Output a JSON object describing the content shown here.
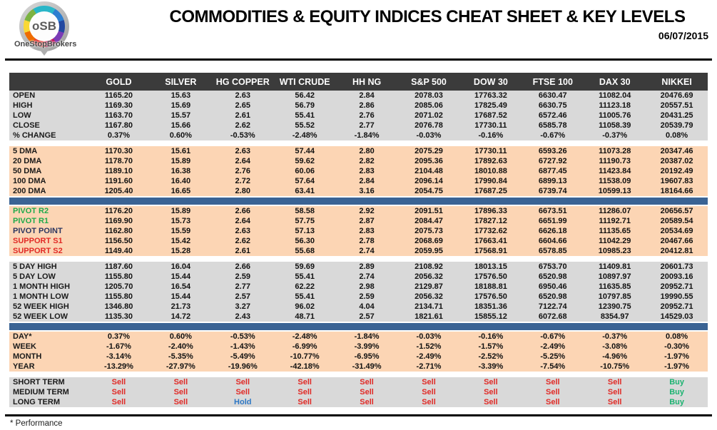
{
  "header": {
    "title": "COMMODITIES & EQUITY INDICES CHEAT SHEET & KEY LEVELS",
    "date": "06/07/2015",
    "logo_text": "oSB",
    "logo_subtext": "OneStopBrokers"
  },
  "footnote": "* Performance",
  "colors": {
    "header_bg": "#3b3b3b",
    "gray_section_bg": "#d9d9d9",
    "peach_section_bg": "#fcd5b4",
    "separator_blue": "#3a6394",
    "sell_red": "#e12a26",
    "buy_green": "#1cb371",
    "hold_blue": "#2d77c4",
    "pivot_green": "#1faa4c",
    "pivot_navy": "#2a3560"
  },
  "table": {
    "columns": [
      "GOLD",
      "SILVER",
      "HG COPPER",
      "WTI CRUDE",
      "HH NG",
      "S&P 500",
      "DOW 30",
      "FTSE 100",
      "DAX 30",
      "NIKKEI"
    ],
    "sections": [
      {
        "type": "rows",
        "bg": "gray",
        "rows": [
          {
            "label": "OPEN",
            "values": [
              "1165.20",
              "15.63",
              "2.63",
              "56.42",
              "2.84",
              "2078.03",
              "17763.32",
              "6630.47",
              "11082.04",
              "20476.69"
            ]
          },
          {
            "label": "HIGH",
            "values": [
              "1169.30",
              "15.69",
              "2.65",
              "56.79",
              "2.86",
              "2085.06",
              "17825.49",
              "6630.75",
              "11123.18",
              "20557.51"
            ]
          },
          {
            "label": "LOW",
            "values": [
              "1163.70",
              "15.57",
              "2.61",
              "55.41",
              "2.76",
              "2071.02",
              "17687.52",
              "6572.46",
              "11005.76",
              "20431.25"
            ]
          },
          {
            "label": "CLOSE",
            "values": [
              "1167.80",
              "15.66",
              "2.62",
              "55.52",
              "2.77",
              "2076.78",
              "17730.11",
              "6585.78",
              "11058.39",
              "20539.79"
            ]
          },
          {
            "label": "% CHANGE",
            "values": [
              "0.37%",
              "0.60%",
              "-0.53%",
              "-2.48%",
              "-1.84%",
              "-0.03%",
              "-0.16%",
              "-0.67%",
              "-0.37%",
              "0.08%"
            ]
          }
        ]
      },
      {
        "type": "rows",
        "bg": "peach",
        "rows": [
          {
            "label": "5 DMA",
            "values": [
              "1170.30",
              "15.61",
              "2.63",
              "57.44",
              "2.80",
              "2075.29",
              "17730.11",
              "6593.26",
              "11073.28",
              "20347.46"
            ]
          },
          {
            "label": "20 DMA",
            "values": [
              "1178.70",
              "15.89",
              "2.64",
              "59.62",
              "2.82",
              "2095.36",
              "17892.63",
              "6727.92",
              "11190.73",
              "20387.02"
            ]
          },
          {
            "label": "50 DMA",
            "values": [
              "1189.10",
              "16.38",
              "2.76",
              "60.06",
              "2.83",
              "2104.48",
              "18010.88",
              "6877.45",
              "11423.84",
              "20192.49"
            ]
          },
          {
            "label": "100 DMA",
            "values": [
              "1191.60",
              "16.40",
              "2.72",
              "57.64",
              "2.84",
              "2096.14",
              "17990.84",
              "6899.13",
              "11538.09",
              "19607.83"
            ]
          },
          {
            "label": "200 DMA",
            "values": [
              "1205.40",
              "16.65",
              "2.80",
              "63.41",
              "3.16",
              "2054.75",
              "17687.25",
              "6739.74",
              "10599.13",
              "18164.66"
            ]
          }
        ]
      },
      {
        "type": "separator"
      },
      {
        "type": "rows",
        "bg": "peach",
        "rows": [
          {
            "label": "PIVOT R2",
            "lc": "green",
            "values": [
              "1176.20",
              "15.89",
              "2.66",
              "58.58",
              "2.92",
              "2091.51",
              "17896.33",
              "6673.51",
              "11286.07",
              "20656.57"
            ]
          },
          {
            "label": "PIVOT R1",
            "lc": "green",
            "values": [
              "1169.90",
              "15.73",
              "2.64",
              "57.75",
              "2.87",
              "2084.47",
              "17827.12",
              "6651.99",
              "11192.71",
              "20589.54"
            ]
          },
          {
            "label": "PIVOT POINT",
            "lc": "navy",
            "values": [
              "1162.80",
              "15.59",
              "2.63",
              "57.13",
              "2.83",
              "2075.73",
              "17732.62",
              "6626.18",
              "11135.65",
              "20534.69"
            ]
          },
          {
            "label": "SUPPORT S1",
            "lc": "red",
            "values": [
              "1156.50",
              "15.42",
              "2.62",
              "56.30",
              "2.78",
              "2068.69",
              "17663.41",
              "6604.66",
              "11042.29",
              "20467.66"
            ]
          },
          {
            "label": "SUPPORT S2",
            "lc": "red",
            "values": [
              "1149.40",
              "15.28",
              "2.61",
              "55.68",
              "2.74",
              "2059.95",
              "17568.91",
              "6578.85",
              "10985.23",
              "20412.81"
            ]
          }
        ]
      },
      {
        "type": "rows",
        "bg": "gray",
        "rows": [
          {
            "label": "5 DAY HIGH",
            "values": [
              "1187.60",
              "16.04",
              "2.66",
              "59.69",
              "2.89",
              "2108.92",
              "18013.15",
              "6753.70",
              "11409.81",
              "20601.73"
            ]
          },
          {
            "label": "5 DAY LOW",
            "values": [
              "1155.80",
              "15.44",
              "2.59",
              "55.41",
              "2.74",
              "2056.32",
              "17576.50",
              "6520.98",
              "10897.97",
              "20093.16"
            ]
          },
          {
            "label": "1 MONTH HIGH",
            "values": [
              "1205.70",
              "16.54",
              "2.77",
              "62.22",
              "2.98",
              "2129.87",
              "18188.81",
              "6950.46",
              "11635.85",
              "20952.71"
            ]
          },
          {
            "label": "1 MONTH LOW",
            "values": [
              "1155.80",
              "15.44",
              "2.57",
              "55.41",
              "2.59",
              "2056.32",
              "17576.50",
              "6520.98",
              "10797.85",
              "19990.55"
            ]
          },
          {
            "label": "52 WEEK HIGH",
            "values": [
              "1346.80",
              "21.73",
              "3.27",
              "96.02",
              "4.04",
              "2134.71",
              "18351.36",
              "7122.74",
              "12390.75",
              "20952.71"
            ]
          },
          {
            "label": "52 WEEK LOW",
            "values": [
              "1135.30",
              "14.72",
              "2.43",
              "48.71",
              "2.57",
              "1821.61",
              "15855.12",
              "6072.68",
              "8354.97",
              "14529.03"
            ]
          }
        ]
      },
      {
        "type": "separator"
      },
      {
        "type": "rows",
        "bg": "peach",
        "rows": [
          {
            "label": "DAY*",
            "values": [
              "0.37%",
              "0.60%",
              "-0.53%",
              "-2.48%",
              "-1.84%",
              "-0.03%",
              "-0.16%",
              "-0.67%",
              "-0.37%",
              "0.08%"
            ]
          },
          {
            "label": "WEEK",
            "values": [
              "-1.67%",
              "-2.40%",
              "-1.43%",
              "-6.99%",
              "-3.99%",
              "-1.52%",
              "-1.57%",
              "-2.49%",
              "-3.08%",
              "-0.30%"
            ]
          },
          {
            "label": "MONTH",
            "values": [
              "-3.14%",
              "-5.35%",
              "-5.49%",
              "-10.77%",
              "-6.95%",
              "-2.49%",
              "-2.52%",
              "-5.25%",
              "-4.96%",
              "-1.97%"
            ]
          },
          {
            "label": "YEAR",
            "values": [
              "-13.29%",
              "-27.97%",
              "-19.96%",
              "-42.18%",
              "-31.49%",
              "-2.71%",
              "-3.39%",
              "-7.54%",
              "-10.75%",
              "-1.97%"
            ]
          }
        ]
      },
      {
        "type": "rows",
        "bg": "gray",
        "rows": [
          {
            "label": "SHORT TERM",
            "values": [
              "Sell",
              "Sell",
              "Sell",
              "Sell",
              "Sell",
              "Sell",
              "Sell",
              "Sell",
              "Sell",
              "Buy"
            ]
          },
          {
            "label": "MEDIUM TERM",
            "values": [
              "Sell",
              "Sell",
              "Sell",
              "Sell",
              "Sell",
              "Sell",
              "Sell",
              "Sell",
              "Sell",
              "Buy"
            ]
          },
          {
            "label": "LONG TERM",
            "values": [
              "Sell",
              "Sell",
              "Hold",
              "Sell",
              "Sell",
              "Sell",
              "Sell",
              "Sell",
              "Sell",
              "Buy"
            ]
          }
        ]
      }
    ]
  }
}
